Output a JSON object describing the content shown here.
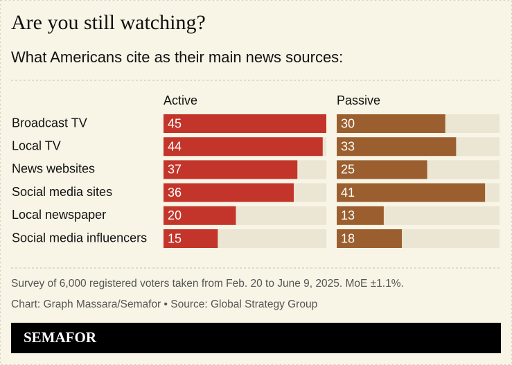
{
  "chart_data": {
    "type": "bar",
    "orientation": "horizontal",
    "title": "Are you still watching?",
    "subtitle": "What Americans cite as their main news sources:",
    "categories": [
      "Broadcast TV",
      "Local TV",
      "News websites",
      "Social media sites",
      "Local newspaper",
      "Social media influencers"
    ],
    "series": [
      {
        "name": "Active",
        "color": "#c3352a",
        "values": [
          45,
          44,
          37,
          36,
          20,
          15
        ]
      },
      {
        "name": "Passive",
        "color": "#9b5f2f",
        "values": [
          30,
          33,
          25,
          41,
          13,
          18
        ]
      }
    ],
    "xlim": [
      0,
      45
    ],
    "track_color": "#ebe5d4"
  },
  "footer": {
    "note": "Survey of 6,000 registered voters taken from Feb. 20 to June 9, 2025. MoE ±1.1%.",
    "credit": "Chart: Graph Massara/Semafor • Source: Global Strategy Group",
    "brand": "SEMAFOR"
  }
}
